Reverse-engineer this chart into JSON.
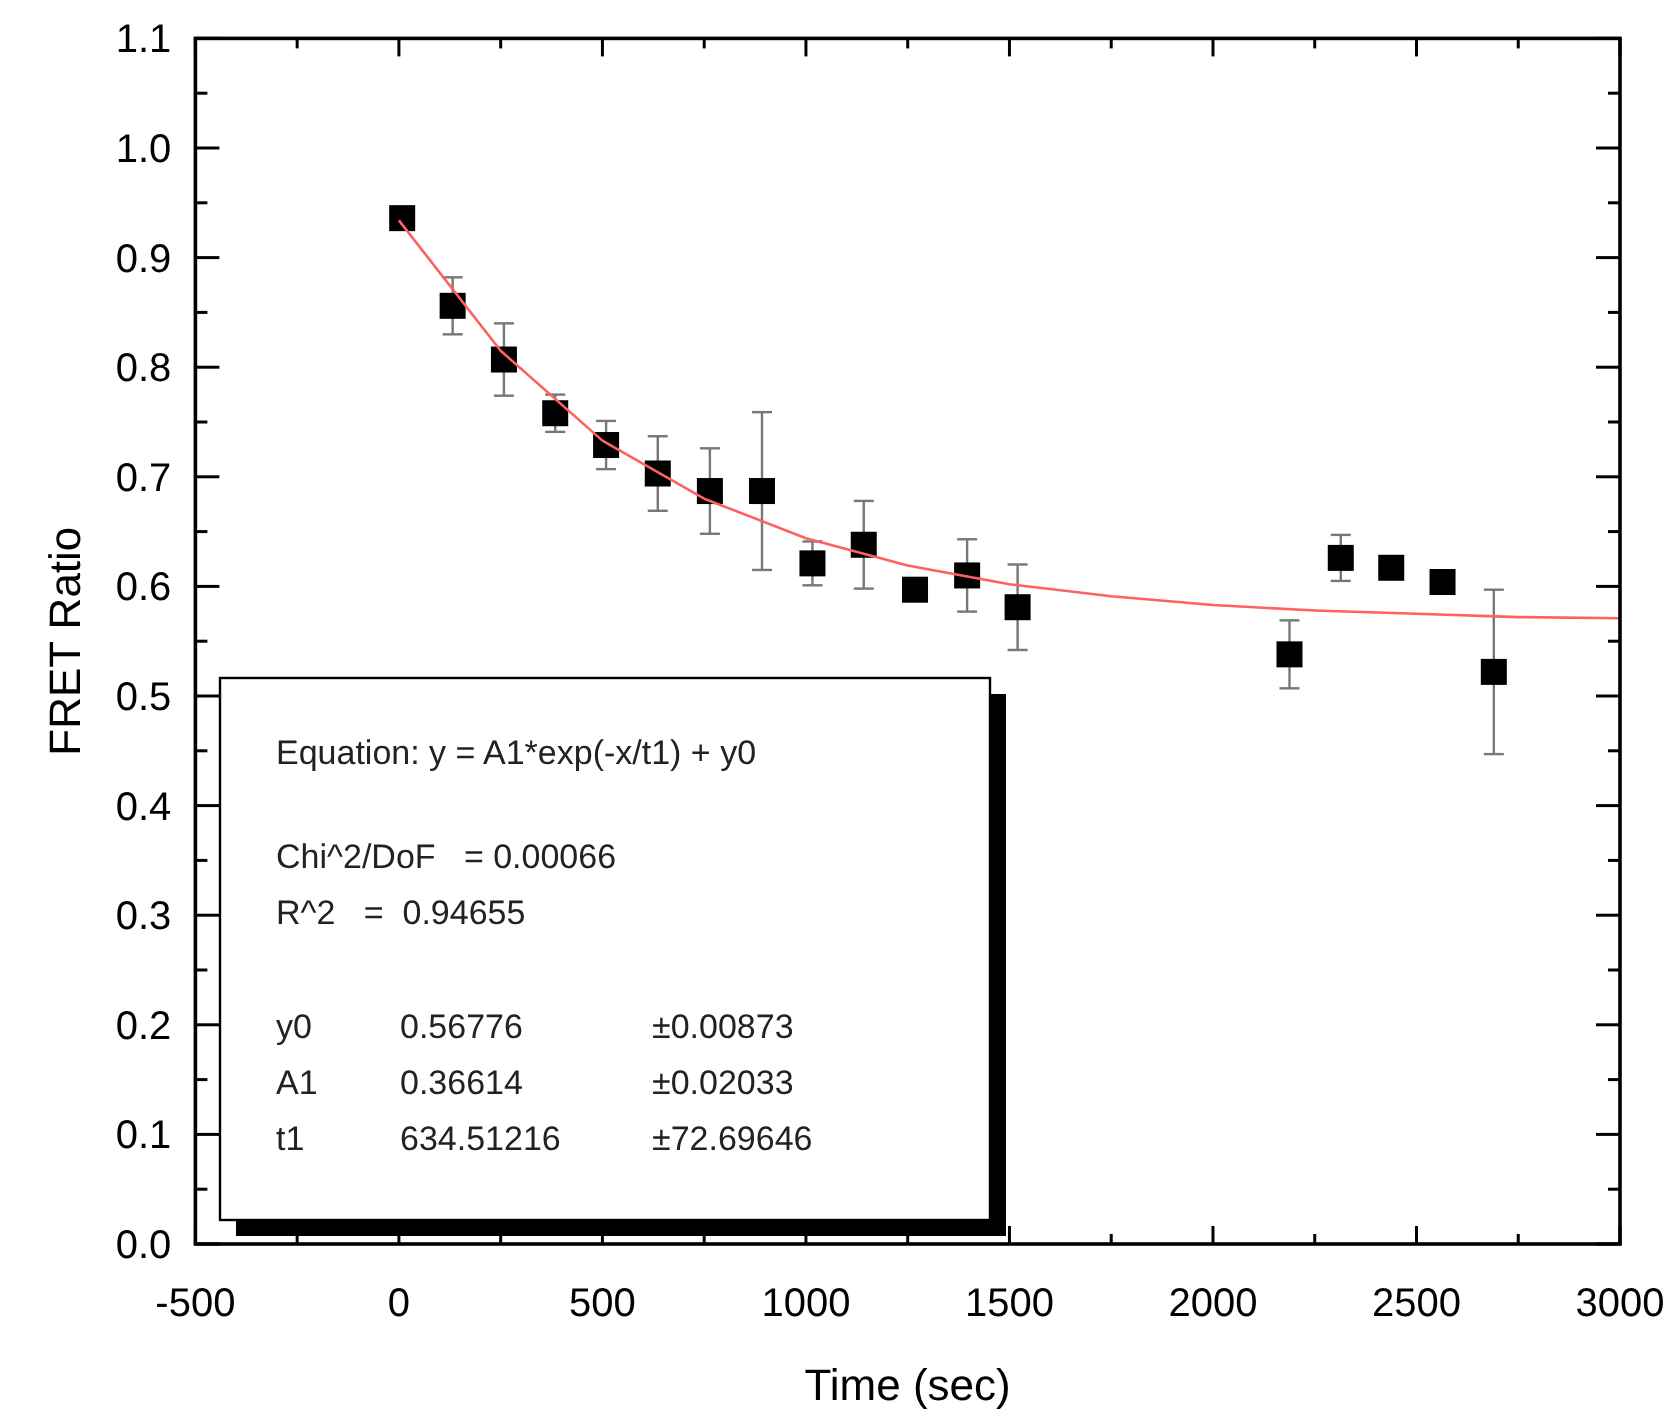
{
  "chart_data": {
    "type": "scatter",
    "xlabel": "Time (sec)",
    "ylabel": "FRET Ratio",
    "xlim": [
      -500,
      3000
    ],
    "ylim": [
      0,
      1.1
    ],
    "xticks": [
      -500,
      {
        "value": -250,
        "label": null
      },
      0,
      {
        "value": 250,
        "label": null
      },
      500,
      {
        "value": 750,
        "label": null
      },
      1000,
      {
        "value": 1250,
        "label": null
      },
      1500,
      {
        "value": 1750,
        "label": null
      },
      2000,
      {
        "value": 2250,
        "label": null
      },
      2500,
      {
        "value": 2750,
        "label": null
      },
      3000
    ],
    "yticks": [
      {
        "value": 0,
        "label": "0.0"
      },
      {
        "value": 0.05,
        "label": null
      },
      0.1,
      {
        "value": 0.15,
        "label": null
      },
      0.2,
      {
        "value": 0.25,
        "label": null
      },
      0.3,
      {
        "value": 0.35,
        "label": null
      },
      0.4,
      {
        "value": 0.45,
        "label": null
      },
      0.5,
      {
        "value": 0.55,
        "label": null
      },
      0.6,
      {
        "value": 0.65,
        "label": null
      },
      0.7,
      {
        "value": 0.75,
        "label": null
      },
      0.8,
      {
        "value": 0.85,
        "label": null
      },
      0.9,
      {
        "value": 0.95,
        "label": null
      },
      {
        "value": 1.0,
        "label": "1.0"
      },
      {
        "value": 1.05,
        "label": null
      },
      1.1
    ],
    "marker": "square",
    "grid": false,
    "series": [
      {
        "type": "scatter",
        "color": "#000000",
        "x": [
          8,
          132,
          258,
          384,
          509,
          636,
          764,
          892,
          1016,
          1142,
          1268,
          1396,
          1520,
          2188,
          2314,
          2438,
          2564,
          2690
        ],
        "values": [
          0.936,
          0.856,
          0.807,
          0.758,
          0.729,
          0.703,
          0.687,
          0.687,
          0.621,
          0.638,
          0.597,
          0.61,
          0.581,
          0.538,
          0.626,
          0.617,
          0.604,
          0.522
        ],
        "errors": [
          0.01,
          0.026,
          0.033,
          0.017,
          0.022,
          0.034,
          0.039,
          0.072,
          0.02,
          0.04,
          null,
          0.033,
          0.039,
          0.031,
          0.021,
          null,
          null,
          0.075
        ]
      },
      {
        "type": "line",
        "color": "#ff6060",
        "marker": "none",
        "x": [
          0,
          250,
          500,
          750,
          1000,
          1250,
          1500,
          1750,
          2000,
          2250,
          2500,
          2750,
          3000
        ],
        "values": [
          0.934,
          0.815,
          0.733,
          0.68,
          0.644,
          0.619,
          0.602,
          0.591,
          0.583,
          0.578,
          0.575,
          0.572,
          0.571
        ]
      }
    ],
    "annotations": [
      "Equation: y = A1*exp(-x/t1) + y0",
      "Chi^2/DoF   = 0.00066",
      "R^2   =  0.94655",
      "y0\t0.56776\t±0.00873",
      "A1\t0.36614\t±0.02033",
      "t1\t634.51216\t±72.69646"
    ]
  }
}
